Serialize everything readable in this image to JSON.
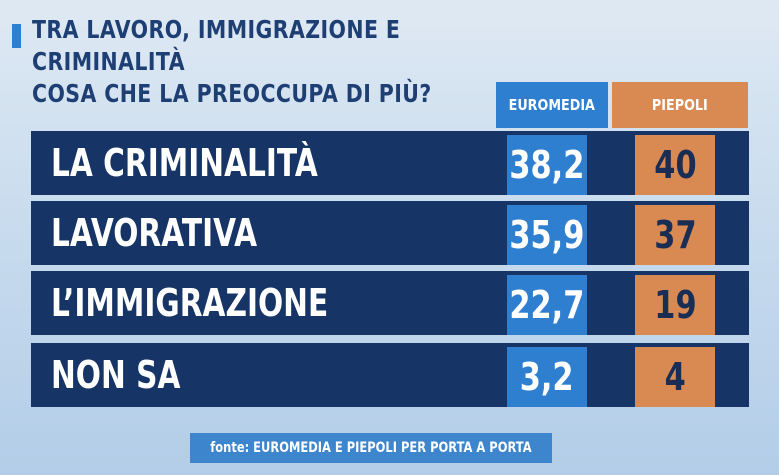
{
  "header": {
    "title_line1": "TRA LAVORO, IMMIGRAZIONE E CRIMINALITÀ",
    "title_line2": "COSA CHE LA PREOCCUPA DI PIÙ?"
  },
  "source": "fonte: EUROMEDIA E PIEPOLI PER PORTA A PORTA",
  "colors": {
    "euromedia": "#2f7fd1",
    "piepoli": "#d98a52",
    "row_background": "#163466",
    "title": "#1e3f73"
  },
  "chart_data": {
    "type": "table",
    "title": "TRA LAVORO, IMMIGRAZIONE E CRIMINALITÀ COSA CHE LA PREOCCUPA DI PIÙ?",
    "columns": [
      "EUROMEDIA",
      "PIEPOLI"
    ],
    "rows": [
      {
        "label": "LA CRIMINALITÀ",
        "euromedia": "38,2",
        "piepoli": "40"
      },
      {
        "label": "LAVORATIVA",
        "euromedia": "35,9",
        "piepoli": "37"
      },
      {
        "label": "L’IMMIGRAZIONE",
        "euromedia": "22,7",
        "piepoli": "19"
      },
      {
        "label": "NON SA",
        "euromedia": "3,2",
        "piepoli": "4"
      }
    ]
  }
}
